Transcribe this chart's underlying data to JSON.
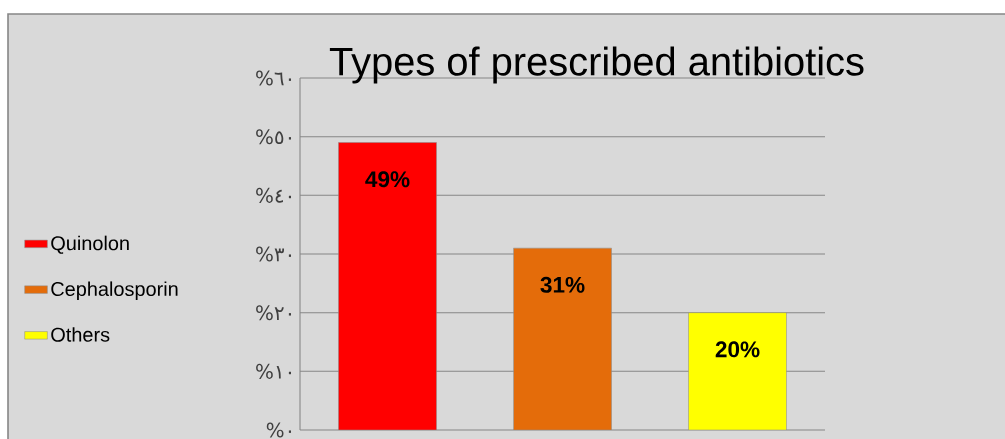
{
  "chart_data": {
    "type": "bar",
    "title": "Types of prescribed antibiotics",
    "categories": [
      null,
      null,
      null
    ],
    "series": [
      {
        "name": "Quinolon",
        "color": "#ff0000",
        "values": [
          49,
          null,
          null
        ],
        "value_labels": [
          "49%",
          null,
          null
        ]
      },
      {
        "name": "Cephalosporin",
        "color": "#e46c0a",
        "values": [
          null,
          31,
          null
        ],
        "value_labels": [
          null,
          "31%",
          null
        ]
      },
      {
        "name": "Others",
        "color": "#ffff00",
        "values": [
          null,
          null,
          20
        ],
        "value_labels": [
          null,
          null,
          "20%"
        ]
      }
    ],
    "ylim": [
      0,
      60
    ],
    "yticks": [
      {
        "value": 0,
        "label": "%٠"
      },
      {
        "value": 10,
        "label": "%١٠"
      },
      {
        "value": 20,
        "label": "%٢٠"
      },
      {
        "value": 30,
        "label": "%٣٠"
      },
      {
        "value": 40,
        "label": "%٤٠"
      },
      {
        "value": 50,
        "label": "%٥٠"
      },
      {
        "value": 60,
        "label": "%٦٠"
      }
    ],
    "grid": "y",
    "legend": "left",
    "tick_labels": "y"
  }
}
